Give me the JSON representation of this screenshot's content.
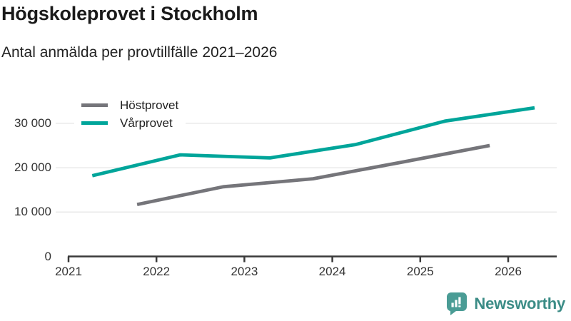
{
  "header": {
    "title": "Högskoleprovet i Stockholm",
    "subtitle": "Antal anmälda per provtillfälle 2021–2026"
  },
  "chart_data": {
    "type": "line",
    "title": "Högskoleprovet i Stockholm",
    "subtitle": "Antal anmälda per provtillfälle 2021–2026",
    "xlabel": "",
    "ylabel": "",
    "x_ticks": [
      2021,
      2022,
      2023,
      2024,
      2025,
      2026
    ],
    "y_ticks": [
      0,
      10000,
      20000,
      30000
    ],
    "y_tick_labels": [
      "0",
      "10 000",
      "20 000",
      "30 000"
    ],
    "xlim": [
      2021,
      2026.55
    ],
    "ylim": [
      0,
      36900
    ],
    "grid": "horizontal",
    "legend_position": "top-left-inside",
    "series": [
      {
        "name": "Höstprovet",
        "color": "#75757a",
        "x": [
          2021.78,
          2022.76,
          2023.78,
          2024.78,
          2025.79
        ],
        "values": [
          11700,
          15700,
          17500,
          21200,
          25000
        ]
      },
      {
        "name": "Vårprovet",
        "color": "#00a59a",
        "x": [
          2021.27,
          2022.27,
          2023.29,
          2024.26,
          2025.28,
          2026.3
        ],
        "values": [
          18200,
          22900,
          22200,
          25200,
          30500,
          33500
        ]
      }
    ]
  },
  "footer": {
    "brand": "Newsworthy",
    "brand_color": "#3b8c86",
    "icon_color": "#4a9c95"
  },
  "style": {
    "axis_color": "#3a3a3a",
    "grid_color": "#e9e9e9"
  }
}
